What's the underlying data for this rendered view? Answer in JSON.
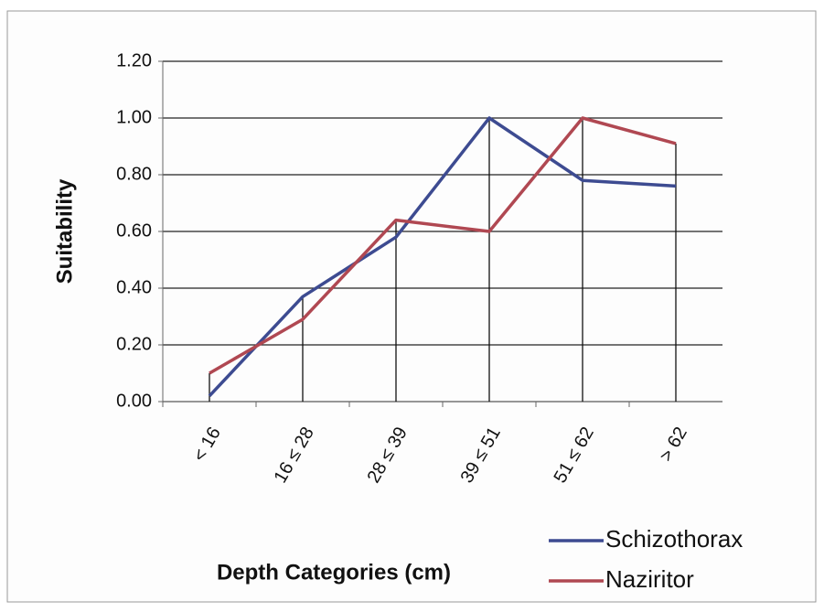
{
  "chart_data": {
    "type": "line",
    "x_label": "Depth Categories (cm)",
    "y_label": "Suitability",
    "categories": [
      "< 16",
      "16 ≤ 28",
      "28 ≤ 39",
      "39 ≤ 51",
      "51 ≤ 62",
      "> 62"
    ],
    "series": [
      {
        "name": "Schizothorax",
        "color": "#3d4b91",
        "values": [
          0.02,
          0.37,
          0.58,
          1.0,
          0.78,
          0.76
        ]
      },
      {
        "name": "Naziritor",
        "color": "#b04852",
        "values": [
          0.1,
          0.29,
          0.64,
          0.6,
          1.0,
          0.91
        ]
      }
    ],
    "ylim": [
      0,
      1.2
    ],
    "yticks": [
      {
        "value": 0,
        "label": "0.00"
      },
      {
        "value": 0.2,
        "label": "0.20"
      },
      {
        "value": 0.4,
        "label": "0.40"
      },
      {
        "value": 0.6,
        "label": "0.60"
      },
      {
        "value": 0.8,
        "label": "0.80"
      },
      {
        "value": 1,
        "label": "1.00"
      },
      {
        "value": 1.2,
        "label": "1.20"
      }
    ],
    "grid": true,
    "drop_lines": true,
    "legend": "lower right"
  }
}
